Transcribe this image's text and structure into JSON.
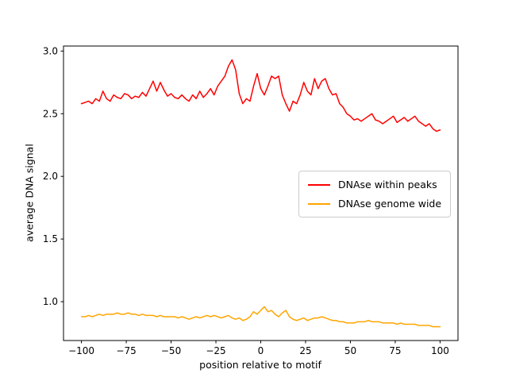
{
  "chart_data": {
    "type": "line",
    "title": "",
    "xlabel": "position relative to motif",
    "ylabel": "average DNA signal",
    "xlim": [
      -110,
      110
    ],
    "ylim": [
      0.69,
      3.04
    ],
    "grid": false,
    "xticks": {
      "values": [
        -100,
        -75,
        -50,
        -25,
        0,
        25,
        50,
        75,
        100
      ],
      "labels": [
        "−100",
        "−75",
        "−50",
        "−25",
        "0",
        "25",
        "50",
        "75",
        "100"
      ]
    },
    "yticks": {
      "values": [
        1.0,
        1.5,
        2.0,
        2.5,
        3.0
      ],
      "labels": [
        "1.0",
        "1.5",
        "2.0",
        "2.5",
        "3.0"
      ]
    },
    "legend": {
      "position": "center right",
      "entries": [
        {
          "label": "DNAse within peaks",
          "color": "#ff0000"
        },
        {
          "label": "DNAse genome wide",
          "color": "#ffa500"
        }
      ]
    },
    "x": [
      -100,
      -98,
      -96,
      -94,
      -92,
      -90,
      -88,
      -86,
      -84,
      -82,
      -80,
      -78,
      -76,
      -74,
      -72,
      -70,
      -68,
      -66,
      -64,
      -62,
      -60,
      -58,
      -56,
      -54,
      -52,
      -50,
      -48,
      -46,
      -44,
      -42,
      -40,
      -38,
      -36,
      -34,
      -32,
      -30,
      -28,
      -26,
      -24,
      -22,
      -20,
      -18,
      -16,
      -14,
      -12,
      -10,
      -8,
      -6,
      -4,
      -2,
      0,
      2,
      4,
      6,
      8,
      10,
      12,
      14,
      16,
      18,
      20,
      22,
      24,
      26,
      28,
      30,
      32,
      34,
      36,
      38,
      40,
      42,
      44,
      46,
      48,
      50,
      52,
      54,
      56,
      58,
      60,
      62,
      64,
      66,
      68,
      70,
      72,
      74,
      76,
      78,
      80,
      82,
      84,
      86,
      88,
      90,
      92,
      94,
      96,
      98,
      100
    ],
    "series": [
      {
        "name": "DNAse within peaks",
        "color": "#ff0000",
        "values": [
          2.58,
          2.59,
          2.6,
          2.58,
          2.62,
          2.6,
          2.68,
          2.62,
          2.6,
          2.65,
          2.63,
          2.62,
          2.66,
          2.65,
          2.62,
          2.64,
          2.63,
          2.67,
          2.64,
          2.7,
          2.76,
          2.68,
          2.75,
          2.69,
          2.64,
          2.66,
          2.63,
          2.62,
          2.65,
          2.62,
          2.6,
          2.65,
          2.62,
          2.68,
          2.63,
          2.66,
          2.7,
          2.65,
          2.72,
          2.76,
          2.8,
          2.88,
          2.93,
          2.85,
          2.66,
          2.58,
          2.62,
          2.6,
          2.72,
          2.82,
          2.7,
          2.65,
          2.72,
          2.8,
          2.78,
          2.8,
          2.65,
          2.58,
          2.52,
          2.6,
          2.58,
          2.65,
          2.75,
          2.68,
          2.65,
          2.78,
          2.7,
          2.76,
          2.78,
          2.7,
          2.65,
          2.66,
          2.58,
          2.55,
          2.5,
          2.48,
          2.45,
          2.46,
          2.44,
          2.46,
          2.48,
          2.5,
          2.45,
          2.44,
          2.42,
          2.44,
          2.46,
          2.48,
          2.43,
          2.45,
          2.47,
          2.44,
          2.46,
          2.48,
          2.44,
          2.42,
          2.4,
          2.42,
          2.38,
          2.36,
          2.37
        ]
      },
      {
        "name": "DNAse genome wide",
        "color": "#ffa500",
        "values": [
          0.88,
          0.88,
          0.89,
          0.88,
          0.89,
          0.9,
          0.89,
          0.9,
          0.9,
          0.9,
          0.91,
          0.9,
          0.9,
          0.91,
          0.9,
          0.9,
          0.89,
          0.9,
          0.89,
          0.89,
          0.89,
          0.88,
          0.89,
          0.88,
          0.88,
          0.88,
          0.88,
          0.87,
          0.88,
          0.87,
          0.86,
          0.87,
          0.88,
          0.87,
          0.88,
          0.89,
          0.88,
          0.89,
          0.88,
          0.87,
          0.88,
          0.89,
          0.87,
          0.86,
          0.87,
          0.85,
          0.86,
          0.88,
          0.92,
          0.9,
          0.93,
          0.96,
          0.92,
          0.93,
          0.9,
          0.88,
          0.91,
          0.93,
          0.88,
          0.86,
          0.85,
          0.86,
          0.87,
          0.85,
          0.86,
          0.87,
          0.87,
          0.88,
          0.87,
          0.86,
          0.85,
          0.85,
          0.84,
          0.84,
          0.83,
          0.83,
          0.83,
          0.84,
          0.84,
          0.84,
          0.85,
          0.84,
          0.84,
          0.84,
          0.83,
          0.83,
          0.83,
          0.83,
          0.82,
          0.83,
          0.82,
          0.82,
          0.82,
          0.82,
          0.81,
          0.81,
          0.81,
          0.81,
          0.8,
          0.8,
          0.8
        ]
      }
    ]
  }
}
